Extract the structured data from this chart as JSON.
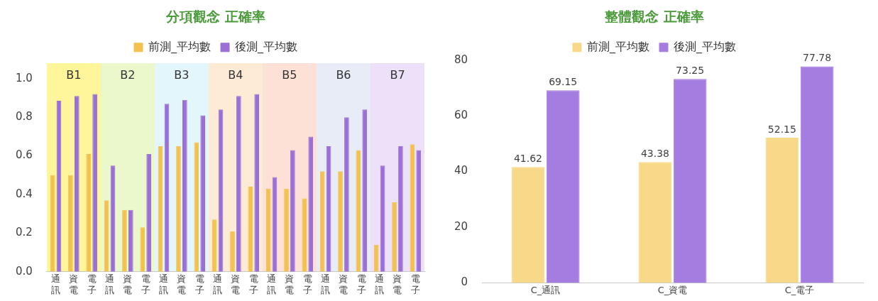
{
  "chart_data": [
    {
      "type": "bar",
      "title": "分項觀念 正確率",
      "categories": [
        "通訊",
        "資電",
        "電子",
        "通訊",
        "資電",
        "電子",
        "通訊",
        "資電",
        "電子",
        "通訊",
        "資電",
        "電子",
        "通訊",
        "資電",
        "電子",
        "通訊",
        "資電",
        "電子",
        "通訊",
        "資電",
        "電子"
      ],
      "series": [
        {
          "name": "前測_平均數",
          "color": "#f2c14e",
          "values": [
            0.5,
            0.5,
            0.61,
            0.37,
            0.32,
            0.23,
            0.65,
            0.65,
            0.67,
            0.27,
            0.21,
            0.44,
            0.43,
            0.43,
            0.38,
            0.52,
            0.52,
            0.63,
            0.14,
            0.36,
            0.66
          ]
        },
        {
          "name": "後測_平均數",
          "color": "#9a6fd6",
          "values": [
            0.885,
            0.91,
            0.92,
            0.55,
            0.32,
            0.61,
            0.87,
            0.89,
            0.81,
            0.84,
            0.91,
            0.92,
            0.49,
            0.63,
            0.7,
            0.65,
            0.8,
            0.84,
            0.55,
            0.65,
            0.63
          ]
        }
      ],
      "annotations": [
        "B1",
        "B2",
        "B3",
        "B4",
        "B5",
        "B6",
        "B7"
      ],
      "ylim": [
        0,
        1
      ],
      "yticks": [
        {
          "value": 0,
          "label": "0.0"
        },
        {
          "value": 0.2,
          "label": "0.2"
        },
        {
          "value": 0.4,
          "label": "0.4"
        },
        {
          "value": 0.6,
          "label": "0.6"
        },
        {
          "value": 0.8,
          "label": "0.8"
        },
        {
          "value": 1,
          "label": "1.0"
        }
      ],
      "grid": false,
      "legend": "top"
    },
    {
      "type": "bar",
      "title": "整體觀念 正確率",
      "categories": [
        "C_通訊",
        "C_資電",
        "C_電子"
      ],
      "series": [
        {
          "name": "前測_平均數",
          "color": "#f8d98a",
          "values": [
            41.62,
            43.38,
            52.15
          ]
        },
        {
          "name": "後測_平均數",
          "color": "#a57de0",
          "values": [
            69.15,
            73.25,
            77.78
          ]
        }
      ],
      "ylim": [
        0,
        80
      ],
      "yticks": [
        0,
        20,
        40,
        60,
        80
      ],
      "data_labels": true,
      "grid": false,
      "legend": "top"
    }
  ]
}
